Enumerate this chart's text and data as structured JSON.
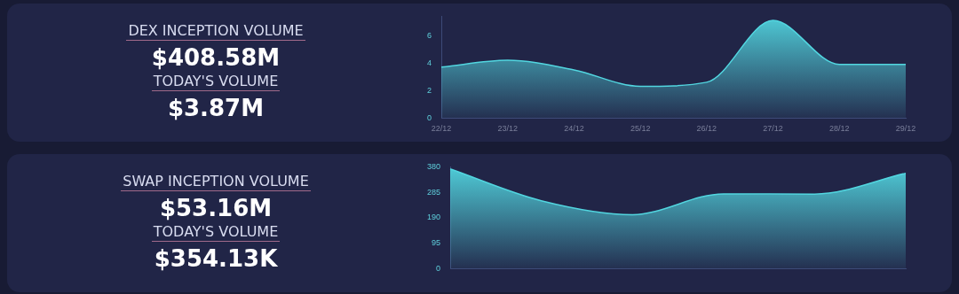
{
  "chart_data": [
    {
      "type": "other",
      "title": "DEX INCEPTION VOLUME",
      "annotations": [
        "$408.58M",
        "TODAY'S VOLUME",
        "$3.87M"
      ]
    },
    {
      "type": "area",
      "categories": [
        "22/12",
        "23/12",
        "24/12",
        "25/12",
        "26/12",
        "27/12",
        "28/12",
        "29/12"
      ],
      "series": [
        {
          "color": "#52d6e0",
          "values": [
            3.7,
            4.2,
            3.5,
            2.3,
            2.6,
            7.1,
            3.9,
            3.9
          ]
        }
      ],
      "ylim": [
        0,
        7.4
      ],
      "yticks": [
        0,
        2,
        4,
        6
      ],
      "grid": false,
      "legend": false
    },
    {
      "type": "other",
      "title": "SWAP INCEPTION VOLUME",
      "annotations": [
        "$53.16M",
        "TODAY'S VOLUME",
        "$354.13K"
      ]
    },
    {
      "type": "area",
      "categories": [
        null,
        null,
        null,
        null,
        null,
        null
      ],
      "series": [
        {
          "color": "#52d6e0",
          "values": [
            372,
            253,
            201,
            279,
            278,
            356
          ]
        }
      ],
      "ylim": [
        0,
        380
      ],
      "yticks": [
        0,
        95,
        190,
        285,
        380
      ],
      "grid": false,
      "legend": false
    }
  ]
}
